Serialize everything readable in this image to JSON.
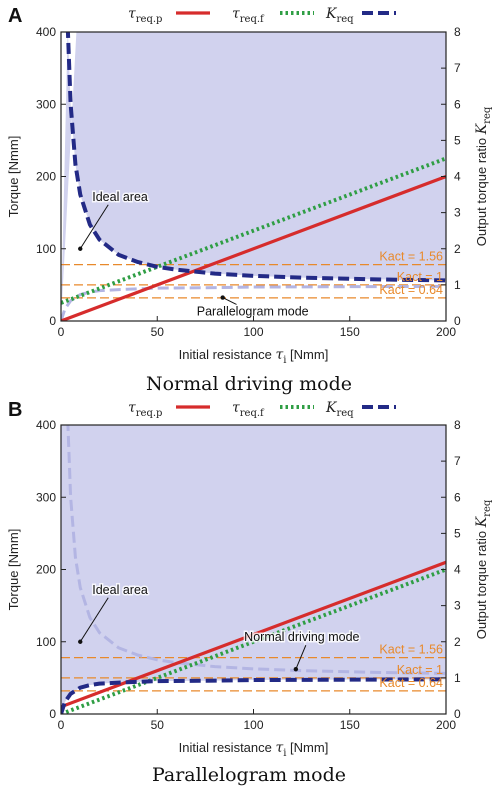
{
  "colors": {
    "tau_req_p": "#d62c2c",
    "tau_req_f": "#2f9e44",
    "K_req": "#232a86",
    "K_req_faded": "#b3b5e3",
    "shade": "#c9caeb",
    "k_act": "#e8892b"
  },
  "legend": {
    "tau_req_p": {
      "base": "τ",
      "sub": "req.p"
    },
    "tau_req_f": {
      "base": "τ",
      "sub": "req.f"
    },
    "K_req": {
      "base": "K",
      "sub": "req"
    }
  },
  "chart_data": [
    {
      "type": "line",
      "panel": "A",
      "caption": "Normal driving mode",
      "xlabel": "Initial resistance",
      "xlabel_symbol": {
        "base": "τ",
        "sub": "i"
      },
      "xlabel_unit": "[Nmm]",
      "ylabel": "Torque [Nmm]",
      "y2label": "Output torque ratio",
      "y2label_symbol": {
        "base": "K",
        "sub": "req"
      },
      "xlim": [
        0,
        200
      ],
      "ylim": [
        0,
        400
      ],
      "y2lim": [
        0,
        8
      ],
      "xticks": [
        "0",
        "50",
        "100",
        "150",
        "200"
      ],
      "yticks": [
        "0",
        "100",
        "200",
        "300",
        "400"
      ],
      "y2ticks": [
        "0",
        "1",
        "2",
        "3",
        "4",
        "5",
        "6",
        "7",
        "8"
      ],
      "grid": false,
      "legend_position": "top",
      "series": [
        {
          "key": "tau_req_p",
          "axis": "left",
          "style": "solid",
          "x": [
            0,
            200
          ],
          "y": [
            0,
            200
          ]
        },
        {
          "key": "tau_req_f",
          "axis": "left",
          "style": "dotted",
          "x": [
            0,
            200
          ],
          "y": [
            25,
            225
          ]
        },
        {
          "key": "K_req",
          "axis": "right",
          "style": "dashed",
          "x": [
            3.5,
            5,
            7.5,
            10,
            15,
            20,
            30,
            40,
            50,
            60,
            80,
            100,
            125,
            150,
            175,
            200
          ],
          "y": [
            8.14,
            6.0,
            4.33,
            3.5,
            2.67,
            2.25,
            1.83,
            1.63,
            1.5,
            1.42,
            1.31,
            1.25,
            1.2,
            1.17,
            1.14,
            1.125
          ]
        },
        {
          "key": "K_req_faded",
          "axis": "right",
          "style": "dashed",
          "x": [
            0,
            2,
            5,
            10,
            15,
            20,
            30,
            50,
            75,
            100,
            150,
            200
          ],
          "y": [
            0,
            0.33,
            0.56,
            0.73,
            0.8,
            0.84,
            0.87,
            0.91,
            0.92,
            0.94,
            0.95,
            0.96
          ]
        }
      ],
      "shaded_region": "between K_req and K_req_faded",
      "k_act_lines": [
        {
          "value": 1.56,
          "label": "Kact = 1.56"
        },
        {
          "value": 1,
          "label": "Kact = 1"
        },
        {
          "value": 0.64,
          "label": "Kact = 0.64"
        }
      ],
      "annotations": [
        {
          "text": "Ideal area",
          "x": 10,
          "y2": 2.0
        },
        {
          "text": "Parallelogram mode",
          "x": 84,
          "y2": 0.65
        }
      ]
    },
    {
      "type": "line",
      "panel": "B",
      "caption": "Parallelogram mode",
      "xlabel": "Initial resistance",
      "xlabel_symbol": {
        "base": "τ",
        "sub": "i"
      },
      "xlabel_unit": "[Nmm]",
      "ylabel": "Torque [Nmm]",
      "y2label": "Output torque ratio",
      "y2label_symbol": {
        "base": "K",
        "sub": "req"
      },
      "xlim": [
        0,
        200
      ],
      "ylim": [
        0,
        400
      ],
      "y2lim": [
        0,
        8
      ],
      "xticks": [
        "0",
        "50",
        "100",
        "150",
        "200"
      ],
      "yticks": [
        "0",
        "100",
        "200",
        "300",
        "400"
      ],
      "y2ticks": [
        "0",
        "1",
        "2",
        "3",
        "4",
        "5",
        "6",
        "7",
        "8"
      ],
      "grid": false,
      "legend_position": "top",
      "series": [
        {
          "key": "tau_req_p",
          "axis": "left",
          "style": "solid",
          "x": [
            0,
            200
          ],
          "y": [
            10,
            210
          ]
        },
        {
          "key": "tau_req_f",
          "axis": "left",
          "style": "dotted",
          "x": [
            0,
            200
          ],
          "y": [
            0,
            200
          ]
        },
        {
          "key": "K_req",
          "axis": "right",
          "style": "dashed",
          "x": [
            0,
            2,
            5,
            10,
            15,
            20,
            30,
            50,
            75,
            100,
            150,
            200
          ],
          "y": [
            0,
            0.33,
            0.56,
            0.73,
            0.8,
            0.84,
            0.87,
            0.91,
            0.92,
            0.94,
            0.95,
            0.96
          ]
        },
        {
          "key": "K_req_faded",
          "axis": "right",
          "style": "dashed",
          "x": [
            3.5,
            5,
            7.5,
            10,
            15,
            20,
            30,
            40,
            50,
            60,
            80,
            100,
            125,
            150,
            175,
            200
          ],
          "y": [
            8.14,
            6.0,
            4.33,
            3.5,
            2.67,
            2.25,
            1.83,
            1.63,
            1.5,
            1.42,
            1.31,
            1.25,
            1.2,
            1.17,
            1.14,
            1.125
          ]
        }
      ],
      "shaded_region": "between K_req and K_req_faded",
      "k_act_lines": [
        {
          "value": 1.56,
          "label": "Kact = 1.56"
        },
        {
          "value": 1,
          "label": "Kact = 1"
        },
        {
          "value": 0.64,
          "label": "Kact = 0.64"
        }
      ],
      "annotations": [
        {
          "text": "Ideal area",
          "x": 10,
          "y2": 2.0
        },
        {
          "text": "Normal driving mode",
          "x": 122,
          "y2": 1.24
        }
      ]
    }
  ]
}
